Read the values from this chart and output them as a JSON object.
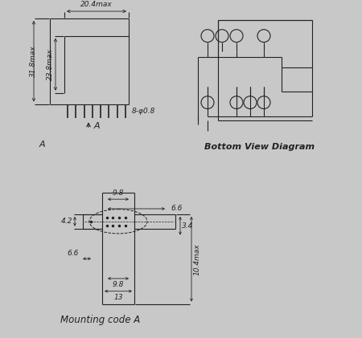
{
  "bg_color": "#c8c8c8",
  "line_color": "#222222",
  "text_color": "#222222",
  "fig_width": 4.5,
  "fig_height": 4.21,
  "dpi": 100,
  "bottom_view_label": "Bottom View Diagram",
  "mounting_label": "Mounting code A",
  "dim_20_4": "20.4max",
  "dim_31_8": "31.8max",
  "dim_23_8": "23.8max",
  "dim_8_phi": "8-φ0.8",
  "dim_9_8a": "9.8",
  "dim_6_6a": "6.6",
  "dim_4_2": "4.2",
  "dim_6_6b": "6.6",
  "dim_3_4": "3.4",
  "dim_9_8b": "9.8",
  "dim_13": "13",
  "dim_10_4": "10.4max",
  "label_A_top": "A",
  "label_A_bot": "A"
}
